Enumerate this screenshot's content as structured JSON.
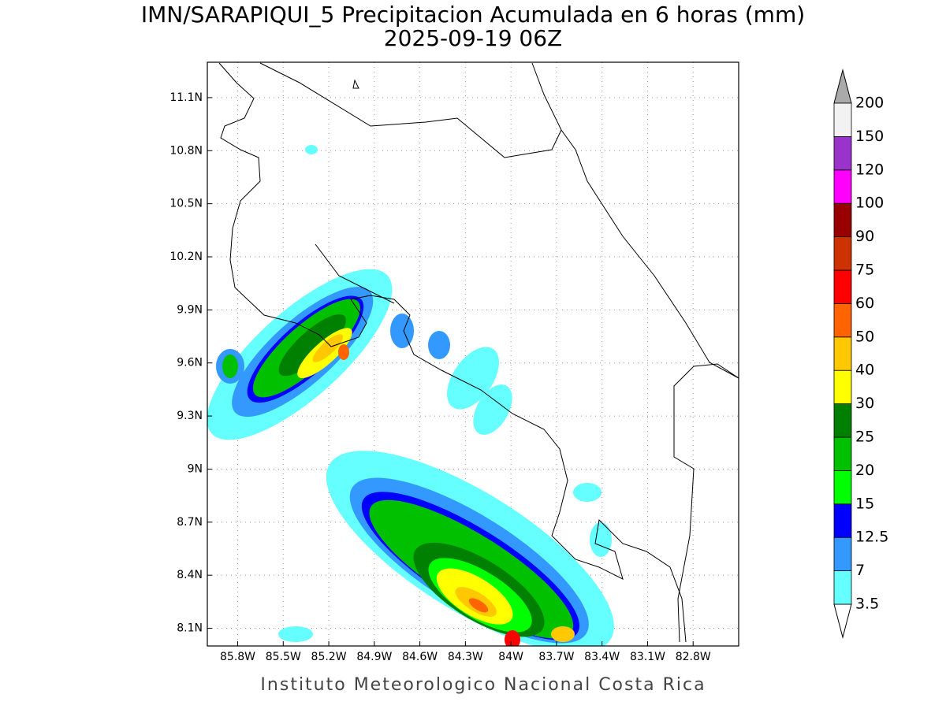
{
  "header": {
    "title": "IMN/SARAPIQUI_5 Precipitacion Acumulada en 6 horas (mm)",
    "subtitle": "2025-09-19 06Z"
  },
  "map": {
    "lonlim": [
      -86.0,
      -82.5
    ],
    "latlim": [
      8.0,
      11.3
    ],
    "grid": true,
    "lonticks": [
      {
        "value": -85.8,
        "label": "85.8W"
      },
      {
        "value": -85.5,
        "label": "85.5W"
      },
      {
        "value": -85.2,
        "label": "85.2W"
      },
      {
        "value": -84.9,
        "label": "84.9W"
      },
      {
        "value": -84.6,
        "label": "84.6W"
      },
      {
        "value": -84.3,
        "label": "84.3W"
      },
      {
        "value": -84.0,
        "label": "84W"
      },
      {
        "value": -83.7,
        "label": "83.7W"
      },
      {
        "value": -83.4,
        "label": "83.4W"
      },
      {
        "value": -83.1,
        "label": "83.1W"
      },
      {
        "value": -82.8,
        "label": "82.8W"
      }
    ],
    "latticks": [
      {
        "value": 8.1,
        "label": "8.1N"
      },
      {
        "value": 8.4,
        "label": "8.4N"
      },
      {
        "value": 8.7,
        "label": "8.7N"
      },
      {
        "value": 9.0,
        "label": "9N"
      },
      {
        "value": 9.3,
        "label": "9.3N"
      },
      {
        "value": 9.6,
        "label": "9.6N"
      },
      {
        "value": 9.9,
        "label": "9.9N"
      },
      {
        "value": 10.2,
        "label": "10.2N"
      },
      {
        "value": 10.5,
        "label": "10.5N"
      },
      {
        "value": 10.8,
        "label": "10.8N"
      },
      {
        "value": 11.1,
        "label": "11.1N"
      }
    ]
  },
  "colorbar": {
    "levels": [
      3.5,
      7,
      12.5,
      15,
      20,
      25,
      30,
      40,
      50,
      60,
      75,
      90,
      100,
      120,
      150,
      200
    ],
    "colors": [
      "#66ffff",
      "#3399ff",
      "#0000ff",
      "#00ff00",
      "#00c000",
      "#008000",
      "#ffff00",
      "#ffc800",
      "#ff6400",
      "#ff0000",
      "#cc3300",
      "#990000",
      "#ff00ff",
      "#9933cc",
      "#f2f2f2"
    ],
    "under_color": "#ffffff",
    "over_color": "#aaaaaa"
  },
  "footer": "Instituto Meteorologico Nacional Costa Rica"
}
